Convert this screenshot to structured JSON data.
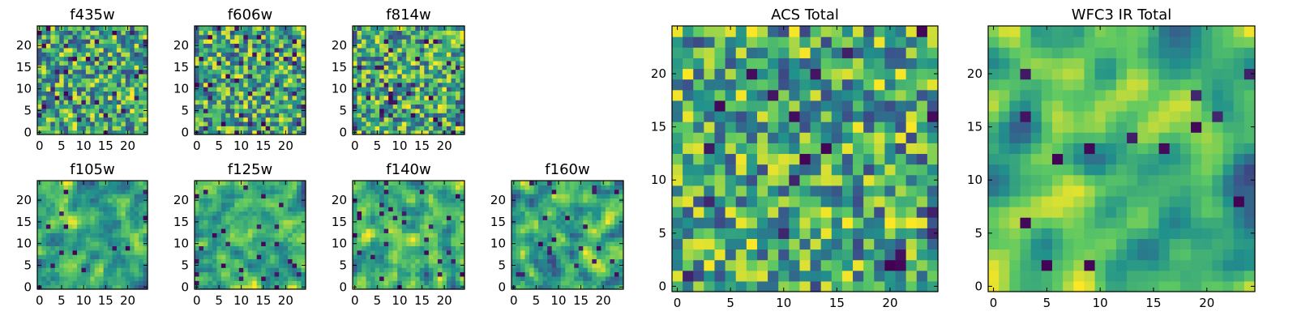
{
  "figure": {
    "colormap": "viridis",
    "colors": [
      "#440154",
      "#3b528b",
      "#21918c",
      "#5ec962",
      "#fde725"
    ],
    "frame_color": "#000000",
    "background": "#ffffff"
  },
  "chart_data": [
    {
      "type": "heatmap",
      "title": "f435w",
      "grid": [
        25,
        25
      ],
      "xlim": [
        0,
        24
      ],
      "ylim": [
        0,
        24
      ],
      "xticks": [
        "0",
        "5",
        "10",
        "15",
        "20"
      ],
      "yticks": [
        "0",
        "5",
        "10",
        "15",
        "20"
      ],
      "seed": 11,
      "smoothing": 0,
      "dark_fraction": 0.05
    },
    {
      "type": "heatmap",
      "title": "f606w",
      "grid": [
        25,
        25
      ],
      "xlim": [
        0,
        24
      ],
      "ylim": [
        0,
        24
      ],
      "xticks": [
        "0",
        "5",
        "10",
        "15",
        "20"
      ],
      "yticks": [
        "0",
        "5",
        "10",
        "15",
        "20"
      ],
      "seed": 23,
      "smoothing": 0,
      "dark_fraction": 0.06
    },
    {
      "type": "heatmap",
      "title": "f814w",
      "grid": [
        25,
        25
      ],
      "xlim": [
        0,
        24
      ],
      "ylim": [
        0,
        24
      ],
      "xticks": [
        "0",
        "5",
        "10",
        "15",
        "20"
      ],
      "yticks": [
        "0",
        "5",
        "10",
        "15",
        "20"
      ],
      "seed": 37,
      "smoothing": 0,
      "dark_fraction": 0.05
    },
    {
      "type": "heatmap",
      "title": "f105w",
      "grid": [
        25,
        25
      ],
      "xlim": [
        0,
        24
      ],
      "ylim": [
        0,
        24
      ],
      "xticks": [
        "0",
        "5",
        "10",
        "15",
        "20"
      ],
      "yticks": [
        "0",
        "5",
        "10",
        "15",
        "20"
      ],
      "seed": 41,
      "smoothing": 1,
      "dark_fraction": 0.03
    },
    {
      "type": "heatmap",
      "title": "f125w",
      "grid": [
        25,
        25
      ],
      "xlim": [
        0,
        24
      ],
      "ylim": [
        0,
        24
      ],
      "xticks": [
        "0",
        "5",
        "10",
        "15",
        "20"
      ],
      "yticks": [
        "0",
        "5",
        "10",
        "15",
        "20"
      ],
      "seed": 53,
      "smoothing": 1,
      "dark_fraction": 0.03
    },
    {
      "type": "heatmap",
      "title": "f140w",
      "grid": [
        25,
        25
      ],
      "xlim": [
        0,
        24
      ],
      "ylim": [
        0,
        24
      ],
      "xticks": [
        "0",
        "5",
        "10",
        "15",
        "20"
      ],
      "yticks": [
        "0",
        "5",
        "10",
        "15",
        "20"
      ],
      "seed": 67,
      "smoothing": 1,
      "dark_fraction": 0.04
    },
    {
      "type": "heatmap",
      "title": "f160w",
      "grid": [
        25,
        25
      ],
      "xlim": [
        0,
        24
      ],
      "ylim": [
        0,
        24
      ],
      "xticks": [
        "0",
        "5",
        "10",
        "15",
        "20"
      ],
      "yticks": [
        "0",
        "5",
        "10",
        "15",
        "20"
      ],
      "seed": 79,
      "smoothing": 1,
      "dark_fraction": 0.03
    },
    {
      "type": "heatmap",
      "title": "ACS Total",
      "grid": [
        25,
        25
      ],
      "xlim": [
        0,
        24
      ],
      "ylim": [
        0,
        24
      ],
      "xticks": [
        "0",
        "5",
        "10",
        "15",
        "20"
      ],
      "yticks": [
        "0",
        "5",
        "10",
        "15",
        "20"
      ],
      "seed": 97,
      "smoothing": 0,
      "dark_fraction": 0.03
    },
    {
      "type": "heatmap",
      "title": "WFC3 IR Total",
      "grid": [
        25,
        25
      ],
      "xlim": [
        0,
        24
      ],
      "ylim": [
        0,
        24
      ],
      "xticks": [
        "0",
        "5",
        "10",
        "15",
        "20"
      ],
      "yticks": [
        "0",
        "5",
        "10",
        "15",
        "20"
      ],
      "seed": 113,
      "smoothing": 2,
      "dark_fraction": 0.03
    }
  ]
}
